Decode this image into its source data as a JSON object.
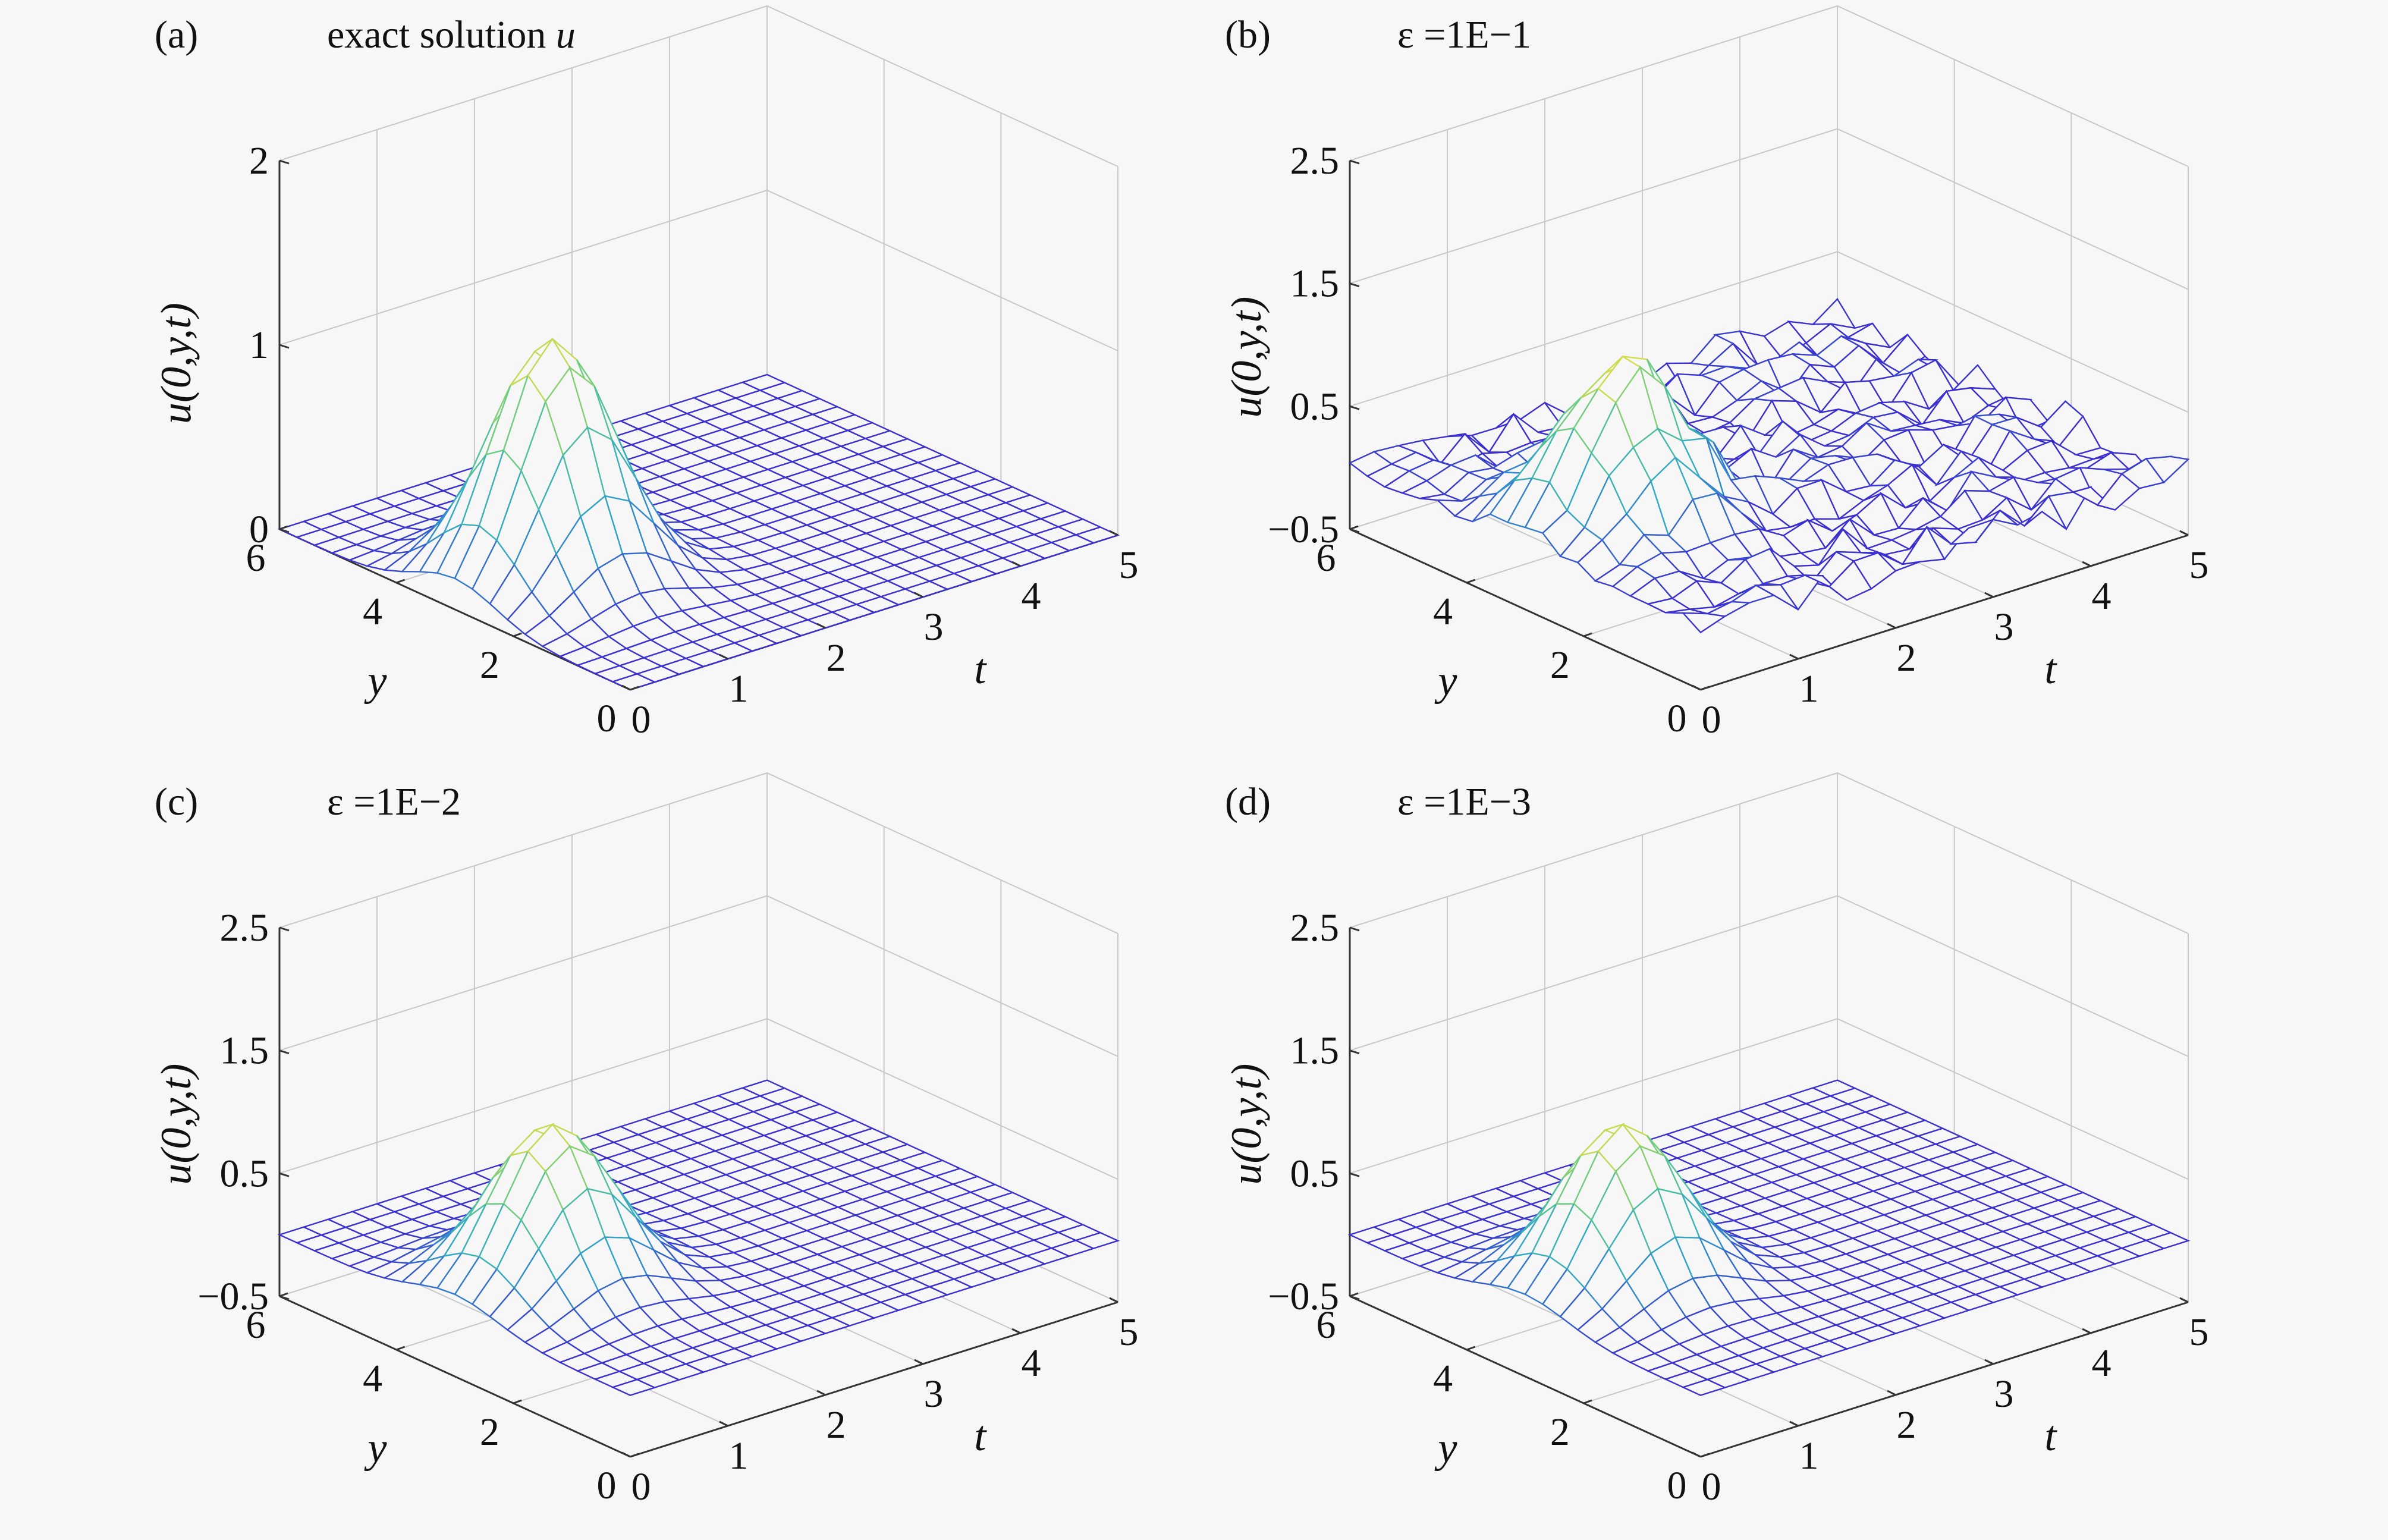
{
  "figure": {
    "panels": [
      {
        "label": "(a)",
        "title_prefix": "exact solution",
        "title_var": "u"
      },
      {
        "label": "(b)",
        "title_prefix": "ε =1E−1",
        "title_var": ""
      },
      {
        "label": "(c)",
        "title_prefix": "ε =1E−2",
        "title_var": ""
      },
      {
        "label": "(d)",
        "title_prefix": "ε =1E−3",
        "title_var": ""
      }
    ]
  },
  "chart_data": [
    {
      "type": "surface",
      "panel": "(a)",
      "title": "exact solution u",
      "xlabel": "t",
      "ylabel": "y",
      "zlabel": "u(0,y,t)",
      "xlim": [
        0,
        5
      ],
      "ylim": [
        0,
        6
      ],
      "zlim": [
        0,
        2
      ],
      "xticks": [
        "0",
        "1",
        "2",
        "3",
        "4",
        "5"
      ],
      "yticks": [
        "0",
        "2",
        "4",
        "6"
      ],
      "zticks": [
        "0",
        "1",
        "2"
      ],
      "peak": {
        "t": 1.0,
        "y": 3.0,
        "u": 1.3
      },
      "noise": 0,
      "grid": true,
      "colors": [
        "#3b2fd0",
        "#2fa7c8",
        "#5cc98b",
        "#f2e23a"
      ]
    },
    {
      "type": "surface",
      "panel": "(b)",
      "title": "ε =1E−1",
      "xlabel": "t",
      "ylabel": "y",
      "zlabel": "u(0,y,t)",
      "xlim": [
        0,
        5
      ],
      "ylim": [
        0,
        6
      ],
      "zlim": [
        -0.5,
        2.5
      ],
      "xticks": [
        "0",
        "1",
        "2",
        "3",
        "4",
        "5"
      ],
      "yticks": [
        "0",
        "2",
        "4",
        "6"
      ],
      "zticks": [
        "−0.5",
        "0.5",
        "1.5",
        "2.5"
      ],
      "peak": {
        "t": 1.0,
        "y": 3.0,
        "u": 1.3
      },
      "noise": 0.15,
      "grid": true,
      "colors": [
        "#3b2fd0",
        "#2fa7c8",
        "#5cc98b",
        "#f2e23a"
      ]
    },
    {
      "type": "surface",
      "panel": "(c)",
      "title": "ε =1E−2",
      "xlabel": "t",
      "ylabel": "y",
      "zlabel": "u(0,y,t)",
      "xlim": [
        0,
        5
      ],
      "ylim": [
        0,
        6
      ],
      "zlim": [
        -0.5,
        2.5
      ],
      "xticks": [
        "0",
        "1",
        "2",
        "3",
        "4",
        "5"
      ],
      "yticks": [
        "0",
        "2",
        "4",
        "6"
      ],
      "zticks": [
        "−0.5",
        "0.5",
        "1.5",
        "2.5"
      ],
      "peak": {
        "t": 1.0,
        "y": 3.0,
        "u": 1.3
      },
      "noise": 0,
      "grid": true,
      "colors": [
        "#3b2fd0",
        "#2fa7c8",
        "#5cc98b",
        "#f2e23a"
      ]
    },
    {
      "type": "surface",
      "panel": "(d)",
      "title": "ε =1E−3",
      "xlabel": "t",
      "ylabel": "y",
      "zlabel": "u(0,y,t)",
      "xlim": [
        0,
        5
      ],
      "ylim": [
        0,
        6
      ],
      "zlim": [
        -0.5,
        2.5
      ],
      "xticks": [
        "0",
        "1",
        "2",
        "3",
        "4",
        "5"
      ],
      "yticks": [
        "0",
        "2",
        "4",
        "6"
      ],
      "zticks": [
        "−0.5",
        "0.5",
        "1.5",
        "2.5"
      ],
      "peak": {
        "t": 1.0,
        "y": 3.0,
        "u": 1.3
      },
      "noise": 0,
      "grid": true,
      "colors": [
        "#3b2fd0",
        "#2fa7c8",
        "#5cc98b",
        "#f2e23a"
      ]
    }
  ]
}
